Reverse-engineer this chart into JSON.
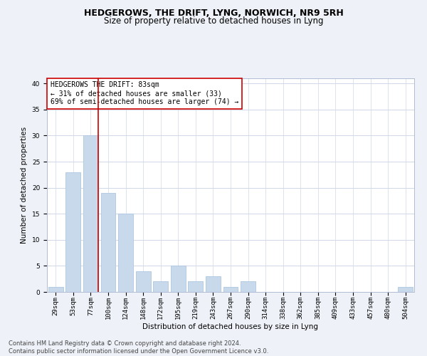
{
  "title": "HEDGEROWS, THE DRIFT, LYNG, NORWICH, NR9 5RH",
  "subtitle": "Size of property relative to detached houses in Lyng",
  "xlabel": "Distribution of detached houses by size in Lyng",
  "ylabel": "Number of detached properties",
  "footer_line1": "Contains HM Land Registry data © Crown copyright and database right 2024.",
  "footer_line2": "Contains public sector information licensed under the Open Government Licence v3.0.",
  "bar_labels": [
    "29sqm",
    "53sqm",
    "77sqm",
    "100sqm",
    "124sqm",
    "148sqm",
    "172sqm",
    "195sqm",
    "219sqm",
    "243sqm",
    "267sqm",
    "290sqm",
    "314sqm",
    "338sqm",
    "362sqm",
    "385sqm",
    "409sqm",
    "433sqm",
    "457sqm",
    "480sqm",
    "504sqm"
  ],
  "bar_values": [
    1,
    23,
    30,
    19,
    15,
    4,
    2,
    5,
    2,
    3,
    1,
    2,
    0,
    0,
    0,
    0,
    0,
    0,
    0,
    0,
    1
  ],
  "bar_color": "#c9d9ec",
  "bar_edgecolor": "#adc6e0",
  "vline_x_index": 2,
  "vline_color": "#cc0000",
  "annotation_text": "HEDGEROWS THE DRIFT: 83sqm\n← 31% of detached houses are smaller (33)\n69% of semi-detached houses are larger (74) →",
  "annotation_box_color": "white",
  "annotation_box_edgecolor": "#cc0000",
  "ylim": [
    0,
    41
  ],
  "yticks": [
    0,
    5,
    10,
    15,
    20,
    25,
    30,
    35,
    40
  ],
  "grid_color": "#d0d8e8",
  "background_color": "#eef2f8",
  "plot_background": "white",
  "title_fontsize": 9,
  "subtitle_fontsize": 8.5,
  "axis_label_fontsize": 7.5,
  "tick_fontsize": 6.5,
  "annotation_fontsize": 7,
  "footer_fontsize": 6
}
